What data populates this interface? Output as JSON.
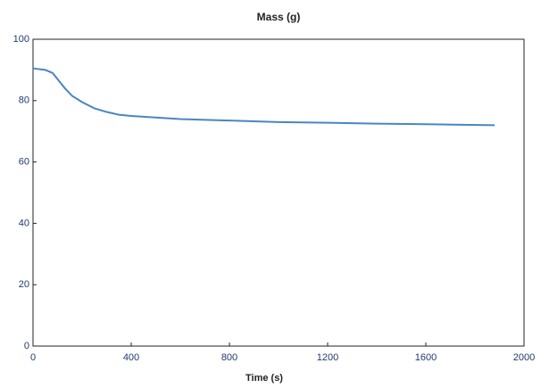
{
  "chart_data": {
    "type": "line",
    "title": "Mass (g)",
    "x_label": "Time (s)",
    "x": [
      0,
      50,
      80,
      100,
      130,
      160,
      200,
      250,
      300,
      350,
      400,
      500,
      600,
      800,
      1000,
      1200,
      1400,
      1600,
      1880
    ],
    "series": [
      {
        "color": "#4a86c0",
        "values": [
          90.5,
          90,
          89,
          87,
          84,
          81.5,
          79.5,
          77.5,
          76.3,
          75.4,
          75,
          74.5,
          74,
          73.5,
          73,
          72.8,
          72.5,
          72.3,
          72
        ]
      }
    ],
    "xlim": [
      0,
      2000
    ],
    "xticks": [
      0,
      400,
      800,
      1200,
      1600,
      2000
    ],
    "ylim": [
      0,
      100
    ],
    "yticks": [
      0,
      20,
      40,
      60,
      80,
      100
    ],
    "grid": false
  }
}
